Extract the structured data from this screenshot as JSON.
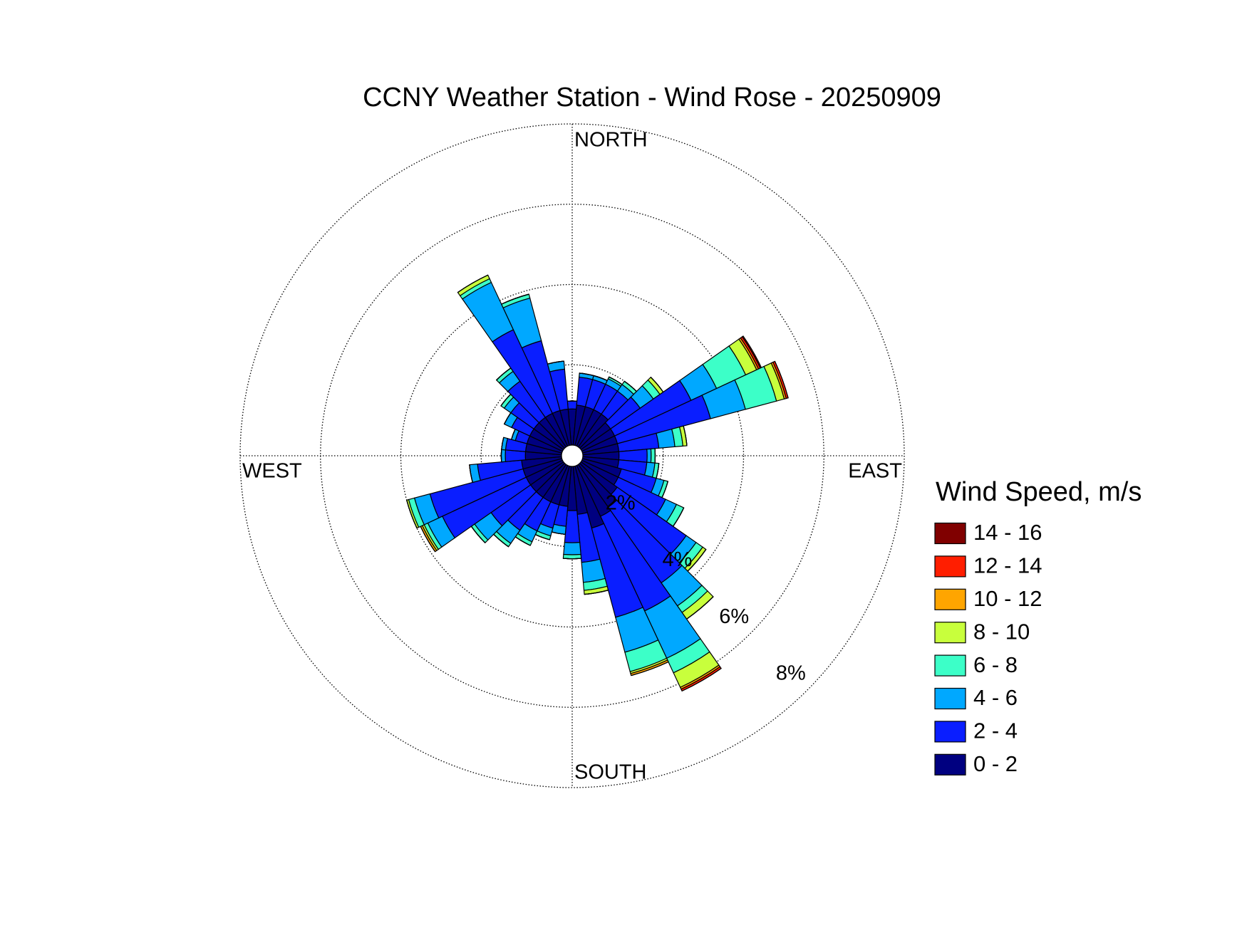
{
  "chart_data": {
    "type": "windrose",
    "title": "CCNY Weather Station - Wind Rose - 20250909",
    "compass_labels": [
      "NORTH",
      "EAST",
      "SOUTH",
      "WEST"
    ],
    "legend_title": "Wind Speed, m/s",
    "directions": [
      0,
      10,
      20,
      30,
      40,
      50,
      60,
      70,
      80,
      90,
      100,
      110,
      120,
      130,
      140,
      150,
      160,
      170,
      180,
      190,
      200,
      210,
      220,
      230,
      240,
      250,
      260,
      270,
      280,
      290,
      300,
      310,
      320,
      330,
      340,
      350
    ],
    "rlim": [
      0,
      8
    ],
    "rticks": [
      {
        "value": 2,
        "label": "2%"
      },
      {
        "value": 4,
        "label": "4%"
      },
      {
        "value": 6,
        "label": "6%"
      },
      {
        "value": 8,
        "label": "8%"
      }
    ],
    "grid": true,
    "series": [
      {
        "name": "0 - 2",
        "color": "#000080",
        "values": [
          0.9,
          1.0,
          1.0,
          1.0,
          1.0,
          0.9,
          0.9,
          0.9,
          0.9,
          0.9,
          0.9,
          1.0,
          1.0,
          1.1,
          1.3,
          1.4,
          1.6,
          1.2,
          1.1,
          1.0,
          1.0,
          1.0,
          1.0,
          1.0,
          1.0,
          1.0,
          1.0,
          0.9,
          0.9,
          0.9,
          0.9,
          0.9,
          0.9,
          0.9,
          0.9,
          0.9
        ]
      },
      {
        "name": "2 - 4",
        "color": "#0a1eff",
        "values": [
          0.2,
          0.7,
          0.7,
          0.7,
          0.7,
          0.9,
          2.1,
          2.4,
          1.0,
          0.7,
          0.7,
          0.9,
          1.3,
          2.1,
          2.3,
          2.6,
          2.3,
          1.2,
          0.8,
          0.5,
          0.6,
          0.8,
          1.0,
          1.2,
          2.3,
          2.4,
          1.1,
          0.5,
          0.5,
          0.3,
          0.5,
          0.7,
          1.1,
          2.3,
          1.8,
          1.0
        ]
      },
      {
        "name": "4 - 6",
        "color": "#00a8ff",
        "values": [
          0,
          0.1,
          0.1,
          0.15,
          0.2,
          0.4,
          0.7,
          0.9,
          0.4,
          0.1,
          0.2,
          0.2,
          0.3,
          0.3,
          0.7,
          1.3,
          0.9,
          0.5,
          0.3,
          0.2,
          0.2,
          0.3,
          0.4,
          0.5,
          0.4,
          0.4,
          0.2,
          0.1,
          0.1,
          0.1,
          0.2,
          0.2,
          0.3,
          1.3,
          1.1,
          0.2
        ]
      },
      {
        "name": "6 - 8",
        "color": "#3cffc8",
        "values": [
          0,
          0,
          0,
          0.05,
          0.1,
          0.2,
          0.8,
          0.8,
          0.2,
          0.1,
          0.1,
          0.1,
          0.2,
          0.2,
          0.2,
          0.4,
          0.5,
          0.2,
          0.1,
          0,
          0.1,
          0.1,
          0.1,
          0.1,
          0.1,
          0.15,
          0,
          0,
          0,
          0,
          0,
          0.1,
          0.1,
          0.1,
          0.1,
          0
        ]
      },
      {
        "name": "8 - 10",
        "color": "#c8ff3c",
        "values": [
          0,
          0,
          0,
          0,
          0,
          0.1,
          0.3,
          0.2,
          0.1,
          0,
          0,
          0,
          0,
          0.1,
          0.2,
          0.4,
          0.05,
          0.1,
          0,
          0,
          0,
          0,
          0,
          0,
          0.05,
          0.05,
          0,
          0,
          0,
          0,
          0,
          0,
          0,
          0.1,
          0,
          0
        ]
      },
      {
        "name": "10 - 12",
        "color": "#ffa500",
        "values": [
          0,
          0,
          0,
          0,
          0,
          0,
          0.05,
          0.05,
          0,
          0,
          0,
          0,
          0,
          0,
          0,
          0.05,
          0.05,
          0,
          0,
          0,
          0,
          0,
          0,
          0,
          0.05,
          0,
          0,
          0,
          0,
          0,
          0,
          0,
          0,
          0,
          0,
          0
        ]
      },
      {
        "name": "12 - 14",
        "color": "#ff1e00",
        "values": [
          0,
          0,
          0,
          0,
          0,
          0,
          0.05,
          0.05,
          0,
          0,
          0,
          0,
          0,
          0,
          0,
          0.05,
          0,
          0,
          0,
          0,
          0,
          0,
          0,
          0,
          0,
          0,
          0,
          0,
          0,
          0,
          0,
          0,
          0,
          0,
          0,
          0
        ]
      },
      {
        "name": "14 - 16",
        "color": "#800000",
        "values": [
          0,
          0,
          0,
          0,
          0,
          0,
          0.03,
          0,
          0,
          0,
          0,
          0,
          0,
          0,
          0,
          0,
          0,
          0,
          0,
          0,
          0,
          0,
          0,
          0,
          0,
          0,
          0,
          0,
          0,
          0,
          0,
          0,
          0,
          0,
          0,
          0
        ]
      }
    ]
  }
}
